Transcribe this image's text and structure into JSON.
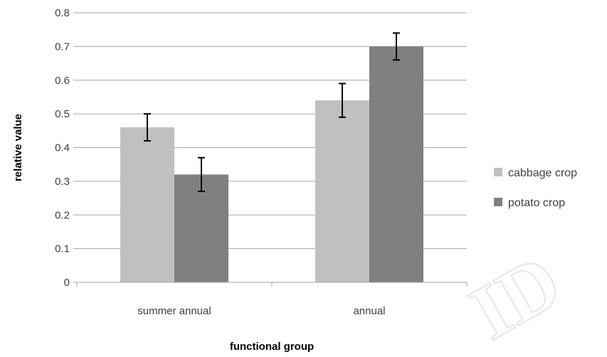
{
  "chart_data": {
    "type": "bar",
    "title": "",
    "xlabel": "functional group",
    "ylabel": "relative value",
    "categories": [
      "summer annual",
      "annual"
    ],
    "series": [
      {
        "name": "cabbage crop",
        "values": [
          0.46,
          0.54
        ],
        "errors": [
          0.04,
          0.05
        ],
        "color": "#c0c0c0"
      },
      {
        "name": "potato crop",
        "values": [
          0.32,
          0.7
        ],
        "errors": [
          0.05,
          0.04
        ],
        "color": "#808080"
      }
    ],
    "ylim": [
      0,
      0.8
    ],
    "yticks": [
      "0",
      "0.1",
      "0.2",
      "0.3",
      "0.4",
      "0.5",
      "0.6",
      "0.7",
      "0.8"
    ],
    "grid": true,
    "legend_position": "right",
    "error_bar_color": "#000000",
    "gridline_color": "#a6a6a6"
  },
  "watermark": {
    "text": "ID"
  }
}
